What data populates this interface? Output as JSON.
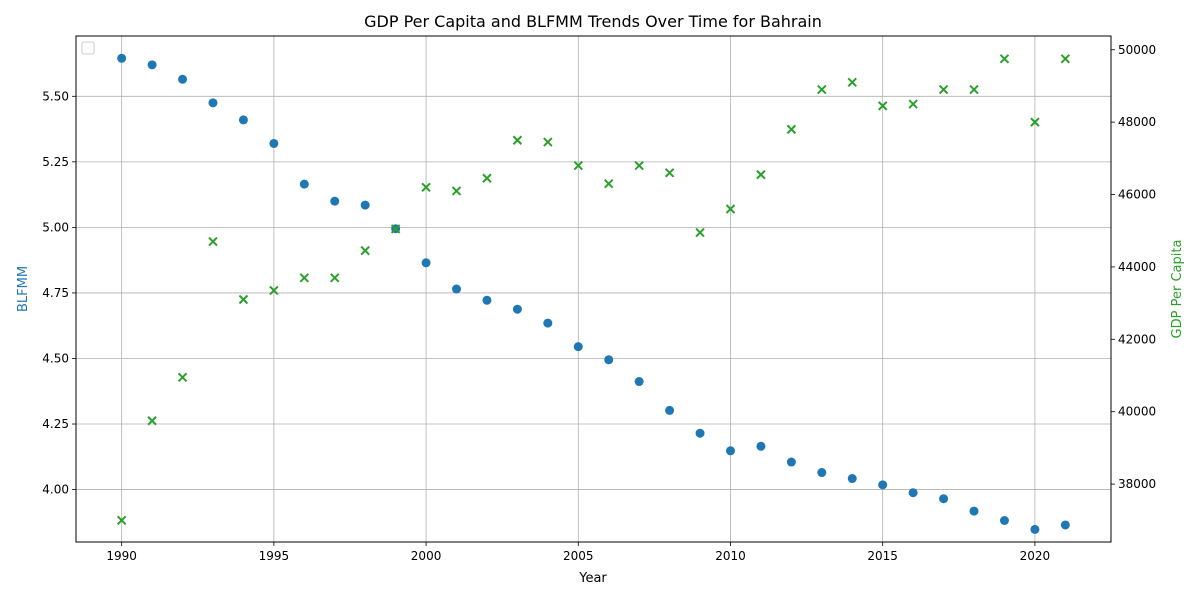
{
  "chart_data": {
    "type": "scatter",
    "title": "GDP Per Capita and BLFMM Trends Over Time for Bahrain",
    "xlabel": "Year",
    "ylabel_left": "BLFMM",
    "ylabel_right": "GDP Per Capita",
    "xlim": [
      1988.5,
      2022.5
    ],
    "ylim_left": [
      3.8,
      5.73
    ],
    "ylim_right": [
      36400,
      50380
    ],
    "x_ticks": [
      1990,
      1995,
      2000,
      2005,
      2010,
      2015,
      2020
    ],
    "y_left_ticks": [
      4.0,
      4.25,
      4.5,
      4.75,
      5.0,
      5.25,
      5.5
    ],
    "y_right_ticks": [
      38000,
      40000,
      42000,
      44000,
      46000,
      48000,
      50000
    ],
    "grid": true,
    "legend": "top-left (empty)",
    "colors": {
      "blfmm": "#1f77b4",
      "gdp": "#2ca02c"
    },
    "x": [
      1990,
      1991,
      1992,
      1993,
      1994,
      1995,
      1996,
      1997,
      1998,
      1999,
      2000,
      2001,
      2002,
      2003,
      2004,
      2005,
      2006,
      2007,
      2008,
      2009,
      2010,
      2011,
      2012,
      2013,
      2014,
      2015,
      2016,
      2017,
      2018,
      2019,
      2020,
      2021
    ],
    "series": [
      {
        "axis": "left",
        "marker": "circle",
        "values": [
          5.645,
          5.62,
          5.565,
          5.475,
          5.41,
          5.32,
          5.165,
          5.1,
          5.085,
          4.995,
          4.865,
          4.765,
          4.722,
          4.688,
          4.635,
          4.545,
          4.495,
          4.412,
          4.302,
          4.215,
          4.148,
          4.165,
          4.105,
          4.065,
          4.042,
          4.018,
          3.988,
          3.965,
          3.918,
          3.882,
          3.848,
          3.865
        ]
      },
      {
        "axis": "right",
        "marker": "x",
        "values": [
          37000,
          39750,
          40950,
          44700,
          43100,
          43350,
          43700,
          43700,
          44450,
          45050,
          46200,
          46100,
          46450,
          47500,
          47450,
          46800,
          46300,
          46800,
          46600,
          44950,
          45600,
          46550,
          47800,
          48900,
          49100,
          48450,
          48500,
          48900,
          48900,
          49750,
          48000,
          49750
        ]
      }
    ]
  }
}
